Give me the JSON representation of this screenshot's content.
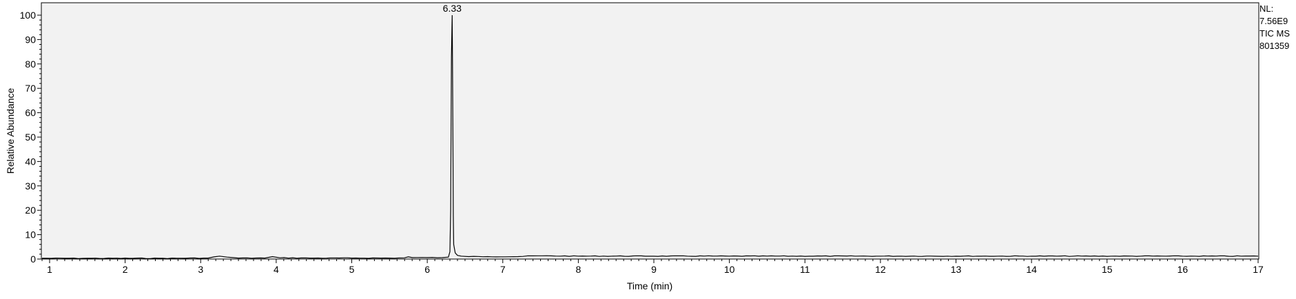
{
  "chart_data": {
    "type": "line",
    "title": "",
    "xlabel": "Time (min)",
    "ylabel": "Relative Abundance",
    "xlim": [
      0.9,
      17.0
    ],
    "ylim": [
      0,
      100
    ],
    "x_ticks": [
      1,
      2,
      3,
      4,
      5,
      6,
      7,
      8,
      9,
      10,
      11,
      12,
      13,
      14,
      15,
      16,
      17
    ],
    "y_ticks": [
      0,
      10,
      20,
      30,
      40,
      50,
      60,
      70,
      80,
      90,
      100
    ],
    "grid": false,
    "series": [
      {
        "x": [
          0.9,
          1.5,
          2.5,
          3.1,
          3.25,
          3.35,
          3.5,
          3.85,
          3.95,
          4.05,
          4.5,
          5.0,
          5.5,
          5.7,
          5.75,
          5.8,
          6.0,
          6.2,
          6.28,
          6.3,
          6.31,
          6.32,
          6.33,
          6.335,
          6.34,
          6.345,
          6.35,
          6.37,
          6.4,
          6.45,
          6.55,
          6.8,
          7.2,
          7.4,
          8.0,
          10.0,
          12.0,
          14.0,
          16.0,
          17.0
        ],
        "y": [
          0.3,
          0.3,
          0.3,
          0.4,
          1.2,
          0.8,
          0.4,
          0.4,
          1.0,
          0.5,
          0.4,
          0.4,
          0.4,
          0.5,
          0.9,
          0.6,
          0.6,
          0.6,
          0.8,
          3,
          20,
          83,
          100,
          80,
          49,
          18,
          6,
          2.5,
          1.5,
          1.2,
          1.0,
          1.0,
          1.0,
          1.3,
          1.2,
          1.2,
          1.2,
          1.2,
          1.2,
          1.2
        ]
      }
    ],
    "peak_labels": [
      {
        "x": 6.33,
        "y": 100,
        "text": "6.33"
      }
    ]
  },
  "side_info": {
    "line1": "NL:",
    "line2": "7.56E9",
    "line3": "TIC  MS",
    "line4": "801359"
  }
}
